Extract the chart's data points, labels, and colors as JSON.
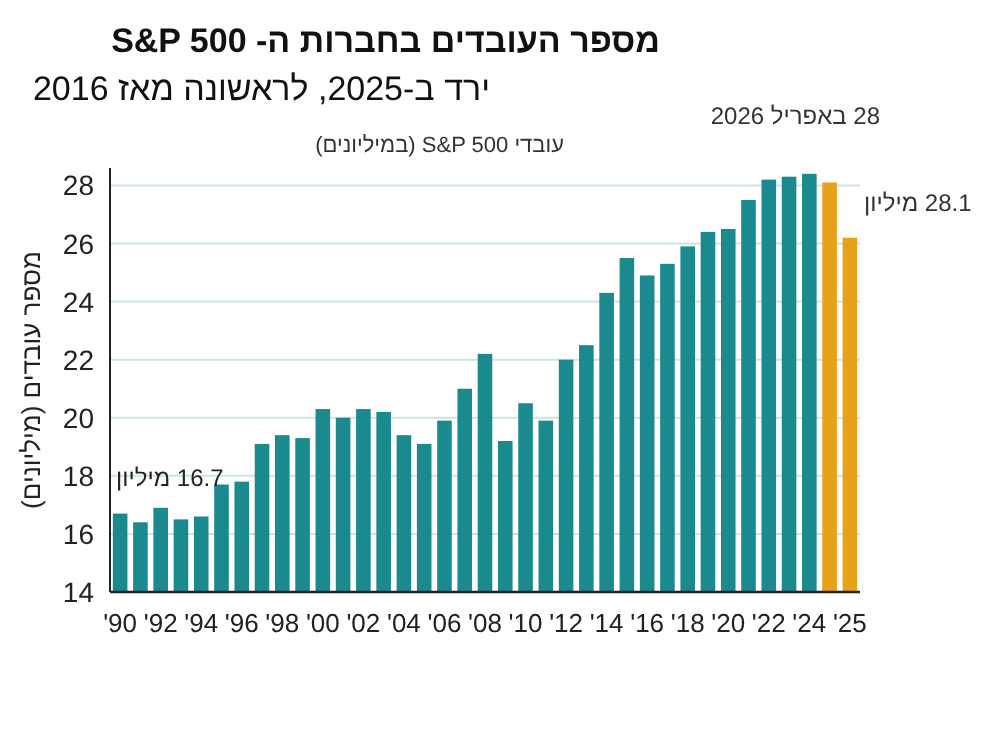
{
  "chart_data": {
    "type": "bar",
    "title": "מספר העובדים בחברות ה- S&P 500",
    "subtitle": "ירד ב-2025, לראשונה מאז 2016",
    "ylabel": "מספר עובדים (מיליונים)",
    "categories": [
      "'90",
      null,
      "'92",
      null,
      "'94",
      null,
      "'96",
      null,
      "'98",
      null,
      "'00",
      null,
      "'02",
      null,
      "'04",
      null,
      "'06",
      null,
      "'08",
      null,
      "'10",
      null,
      "'12",
      null,
      "'14",
      null,
      "'16",
      null,
      "'18",
      null,
      "'20",
      null,
      "'22",
      null,
      "'24",
      null,
      "'25"
    ],
    "values": [
      16.7,
      16.4,
      16.9,
      16.5,
      16.6,
      17.7,
      17.8,
      19.1,
      19.4,
      19.3,
      20.3,
      20.0,
      20.3,
      20.2,
      19.4,
      19.1,
      19.9,
      21.0,
      22.2,
      19.2,
      20.5,
      19.9,
      22.0,
      22.5,
      24.3,
      25.5,
      24.9,
      25.3,
      25.9,
      26.4,
      26.5,
      27.5,
      28.2,
      28.3,
      28.4,
      28.1,
      26.2
    ],
    "colors": [
      "#1b8a8f",
      "#1b8a8f",
      "#1b8a8f",
      "#1b8a8f",
      "#1b8a8f",
      "#1b8a8f",
      "#1b8a8f",
      "#1b8a8f",
      "#1b8a8f",
      "#1b8a8f",
      "#1b8a8f",
      "#1b8a8f",
      "#1b8a8f",
      "#1b8a8f",
      "#1b8a8f",
      "#1b8a8f",
      "#1b8a8f",
      "#1b8a8f",
      "#1b8a8f",
      "#1b8a8f",
      "#1b8a8f",
      "#1b8a8f",
      "#1b8a8f",
      "#1b8a8f",
      "#1b8a8f",
      "#1b8a8f",
      "#1b8a8f",
      "#1b8a8f",
      "#1b8a8f",
      "#1b8a8f",
      "#1b8a8f",
      "#1b8a8f",
      "#1b8a8f",
      "#1b8a8f",
      "#1b8a8f",
      "#e8a21a",
      "#e8a21a"
    ],
    "ylim": [
      14,
      28.6
    ],
    "yticks": [
      14,
      16,
      18,
      20,
      22,
      24,
      26,
      28
    ],
    "grid": "y",
    "annotations": [
      {
        "text": "16.7 מיליון",
        "x": "'90",
        "y": 16.7
      },
      "28.1 מיליון",
      "עובדי S&P 500 (במיליונים)",
      "28 באפריל 2026"
    ]
  }
}
